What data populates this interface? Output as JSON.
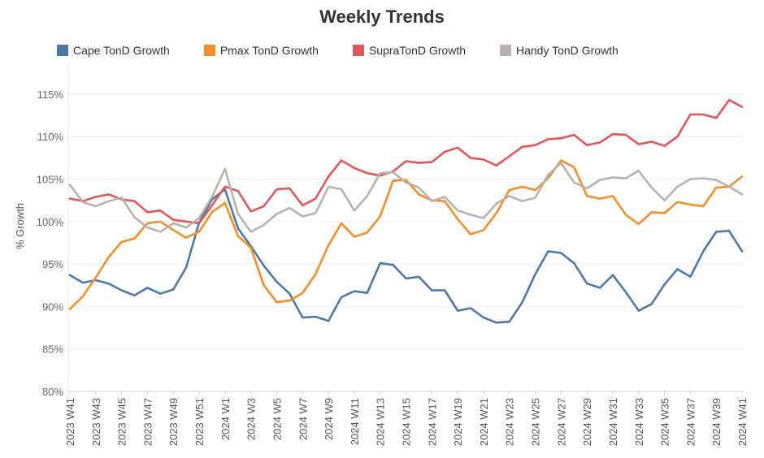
{
  "chart_data": {
    "type": "line",
    "title": "Weekly Trends",
    "ylabel": "% Growth",
    "xlabel": "",
    "ylim": [
      80,
      117
    ],
    "yticks": [
      80,
      85,
      90,
      95,
      100,
      105,
      110,
      115
    ],
    "ytick_labels": [
      "80%",
      "85%",
      "90%",
      "95%",
      "100%",
      "105%",
      "110%",
      "115%"
    ],
    "grid": true,
    "legend_position": "top",
    "x": [
      "2023 W41",
      "2023 W42",
      "2023 W43",
      "2023 W44",
      "2023 W45",
      "2023 W46",
      "2023 W47",
      "2023 W48",
      "2023 W49",
      "2023 W50",
      "2023 W51",
      "2023 W52",
      "2024 W1",
      "2024 W2",
      "2024 W3",
      "2024 W4",
      "2024 W5",
      "2024 W6",
      "2024 W7",
      "2024 W8",
      "2024 W9",
      "2024 W10",
      "2024 W11",
      "2024 W12",
      "2024 W13",
      "2024 W14",
      "2024 W15",
      "2024 W16",
      "2024 W17",
      "2024 W18",
      "2024 W19",
      "2024 W20",
      "2024 W21",
      "2024 W22",
      "2024 W23",
      "2024 W24",
      "2024 W25",
      "2024 W26",
      "2024 W27",
      "2024 W28",
      "2024 W29",
      "2024 W30",
      "2024 W31",
      "2024 W32",
      "2024 W33",
      "2024 W34",
      "2024 W35",
      "2024 W36",
      "2024 W37",
      "2024 W38",
      "2024 W39",
      "2024 W40",
      "2024 W41"
    ],
    "xtick_labels": [
      "2023 W41",
      "2023 W43",
      "2023 W45",
      "2023 W47",
      "2023 W49",
      "2023 W51",
      "2024 W1",
      "2024 W3",
      "2024 W5",
      "2024 W7",
      "2024 W9",
      "2024 W11",
      "2024 W13",
      "2024 W15",
      "2024 W17",
      "2024 W19",
      "2024 W21",
      "2024 W23",
      "2024 W25",
      "2024 W27",
      "2024 W29",
      "2024 W31",
      "2024 W33",
      "2024 W35",
      "2024 W37",
      "2024 W39",
      "2024 W41"
    ],
    "series": [
      {
        "name": "Cape TonD Growth",
        "color": "#4e79a7",
        "values": [
          93.7,
          92.8,
          93.1,
          92.7,
          91.9,
          91.3,
          92.2,
          91.5,
          92.0,
          94.6,
          99.9,
          102.6,
          103.8,
          99.2,
          97.1,
          94.8,
          92.9,
          91.5,
          88.7,
          88.8,
          88.3,
          91.1,
          91.8,
          91.6,
          95.1,
          94.9,
          93.3,
          93.5,
          91.9,
          91.9,
          89.5,
          89.8,
          88.7,
          88.1,
          88.2,
          90.5,
          93.8,
          96.5,
          96.3,
          95.1,
          92.7,
          92.2,
          93.7,
          91.7,
          89.5,
          90.3,
          92.6,
          94.4,
          93.5,
          96.5,
          98.8,
          98.9,
          96.5
        ]
      },
      {
        "name": "Pmax TonD Growth",
        "color": "#f28e2b",
        "values": [
          89.7,
          91.2,
          93.4,
          95.8,
          97.6,
          98.0,
          99.8,
          100.0,
          99.0,
          98.1,
          98.8,
          101.1,
          102.2,
          98.3,
          96.9,
          92.5,
          90.5,
          90.7,
          91.6,
          93.8,
          97.2,
          99.8,
          98.2,
          98.7,
          100.6,
          104.8,
          104.9,
          103.2,
          102.5,
          102.4,
          100.3,
          98.5,
          99.0,
          101.0,
          103.7,
          104.1,
          103.7,
          105.1,
          107.2,
          106.4,
          103.0,
          102.7,
          103.0,
          100.8,
          99.7,
          101.1,
          101.0,
          102.3,
          102.0,
          101.8,
          104.0,
          104.1,
          105.3
        ]
      },
      {
        "name": "SupraTonD Growth",
        "color": "#e15759",
        "values": [
          102.7,
          102.4,
          102.9,
          103.2,
          102.6,
          102.4,
          101.1,
          101.3,
          100.2,
          100.0,
          99.8,
          101.9,
          104.1,
          103.6,
          101.2,
          101.8,
          103.8,
          103.9,
          101.9,
          102.7,
          105.3,
          107.2,
          106.3,
          105.7,
          105.4,
          105.9,
          107.1,
          106.9,
          107.0,
          108.2,
          108.7,
          107.5,
          107.3,
          106.6,
          107.7,
          108.8,
          109.0,
          109.7,
          109.8,
          110.2,
          109.0,
          109.3,
          110.3,
          110.2,
          109.1,
          109.4,
          108.9,
          110.0,
          112.6,
          112.6,
          112.2,
          114.3,
          113.5
        ]
      },
      {
        "name": "Handy TonD Growth",
        "color": "#bab0ac",
        "values": [
          104.3,
          102.3,
          101.8,
          102.4,
          102.8,
          100.5,
          99.3,
          98.8,
          99.8,
          99.3,
          100.4,
          102.9,
          106.2,
          100.9,
          98.8,
          99.6,
          100.9,
          101.6,
          100.6,
          101.0,
          104.1,
          103.8,
          101.3,
          103.0,
          105.7,
          105.8,
          104.6,
          104.0,
          102.4,
          102.9,
          101.3,
          100.8,
          100.4,
          102.1,
          103.0,
          102.4,
          102.8,
          105.5,
          106.9,
          104.6,
          103.9,
          104.9,
          105.2,
          105.1,
          106.0,
          104.0,
          102.5,
          104.1,
          105.0,
          105.1,
          104.9,
          104.1,
          103.2
        ]
      }
    ]
  }
}
